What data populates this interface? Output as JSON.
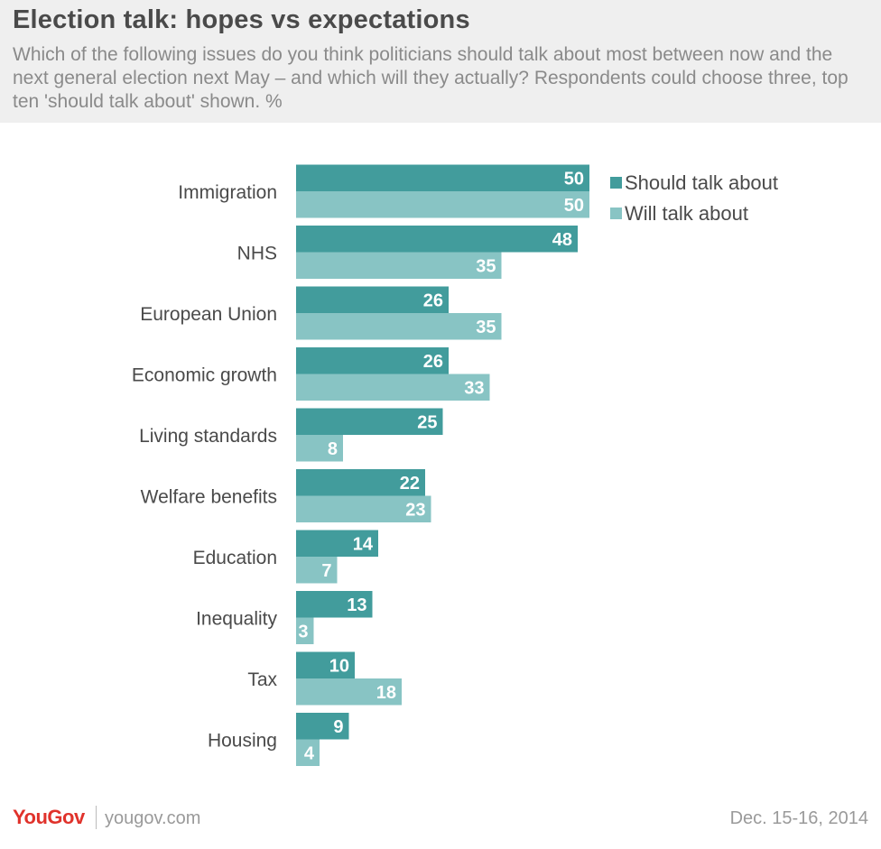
{
  "header": {
    "title": "Election talk: hopes vs expectations",
    "subtitle": "Which of the following issues do you think politicians should talk about most between now and the next general election next May – and which will they actually?  Respondents could choose three, top ten 'should talk about' shown. %"
  },
  "chart_data": {
    "type": "bar",
    "orientation": "horizontal",
    "categories": [
      "Immigration",
      "NHS",
      "European Union",
      "Economic growth",
      "Living standards",
      "Welfare benefits",
      "Education",
      "Inequality",
      "Tax",
      "Housing"
    ],
    "series": [
      {
        "name": "Should talk about",
        "color": "#429c9c",
        "values": [
          50,
          48,
          26,
          26,
          25,
          22,
          14,
          13,
          10,
          9
        ]
      },
      {
        "name": "Will talk about",
        "color": "#88c4c4",
        "values": [
          50,
          35,
          35,
          33,
          8,
          23,
          7,
          3,
          18,
          4
        ]
      }
    ],
    "legend_position": "top-right",
    "grid": false,
    "xlim": [
      0,
      50
    ]
  },
  "footer": {
    "brand": "YouGov",
    "site": "yougov.com",
    "date": "Dec. 15-16, 2014"
  }
}
